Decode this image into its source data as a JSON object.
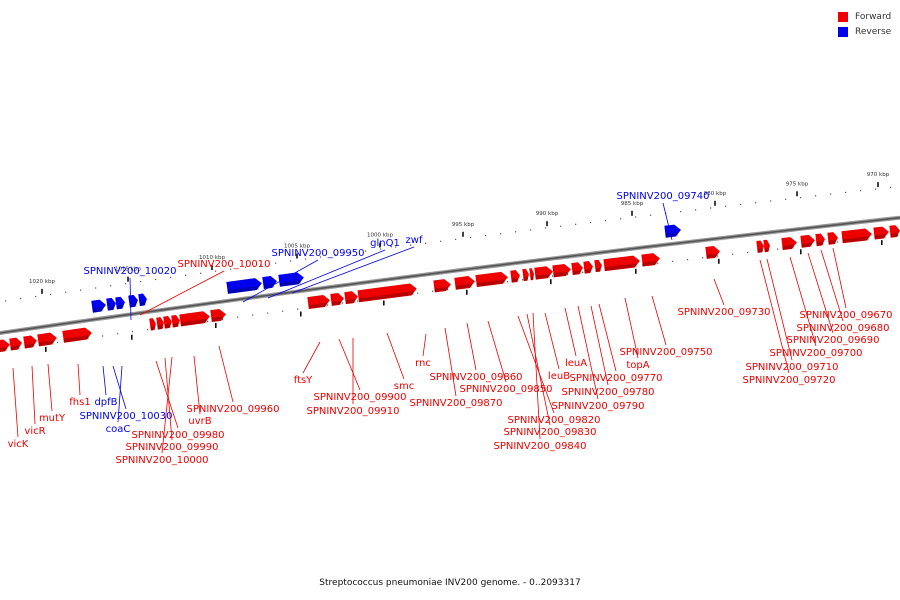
{
  "colors": {
    "forward": "#ee0000",
    "reverse": "#0000ee",
    "backbone": "#777777"
  },
  "legend": {
    "forward_label": "Forward",
    "reverse_label": "Reverse"
  },
  "caption": "Streptococcus pneumoniae INV200 genome. - 0..2093317",
  "ticks": [
    "1020 kbp",
    "1015 kbp",
    "1010 kbp",
    "1005 kbp",
    "1000 kbp",
    "995 kbp",
    "990 kbp",
    "985 kbp",
    "980 kbp",
    "975 kbp",
    "970 kbp"
  ],
  "genes": [
    {
      "label": "vicK",
      "strand": "forward"
    },
    {
      "label": "vicR",
      "strand": "forward"
    },
    {
      "label": "mutY",
      "strand": "forward"
    },
    {
      "label": "fhs1",
      "strand": "forward"
    },
    {
      "label": "dpfB",
      "strand": "reverse"
    },
    {
      "label": "SPNINV200_10030",
      "strand": "reverse"
    },
    {
      "label": "coaC",
      "strand": "reverse"
    },
    {
      "label": "SPNINV200_10020",
      "strand": "reverse"
    },
    {
      "label": "SPNINV200_10010",
      "strand": "forward"
    },
    {
      "label": "SPNINV200_09980",
      "strand": "forward"
    },
    {
      "label": "SPNINV200_09990",
      "strand": "forward"
    },
    {
      "label": "SPNINV200_10000",
      "strand": "forward"
    },
    {
      "label": "uvrB",
      "strand": "forward"
    },
    {
      "label": "SPNINV200_09960",
      "strand": "forward"
    },
    {
      "label": "SPNINV200_09950",
      "strand": "reverse"
    },
    {
      "label": "glnQ1",
      "strand": "reverse"
    },
    {
      "label": "zwf",
      "strand": "reverse"
    },
    {
      "label": "ftsY",
      "strand": "forward"
    },
    {
      "label": "SPNINV200_09900",
      "strand": "forward"
    },
    {
      "label": "SPNINV200_09910",
      "strand": "forward"
    },
    {
      "label": "smc",
      "strand": "forward"
    },
    {
      "label": "rnc",
      "strand": "forward"
    },
    {
      "label": "SPNINV200_09870",
      "strand": "forward"
    },
    {
      "label": "SPNINV200_09860",
      "strand": "forward"
    },
    {
      "label": "SPNINV200_09850",
      "strand": "forward"
    },
    {
      "label": "SPNINV200_09820",
      "strand": "forward"
    },
    {
      "label": "SPNINV200_09830",
      "strand": "forward"
    },
    {
      "label": "SPNINV200_09840",
      "strand": "forward"
    },
    {
      "label": "leuB",
      "strand": "forward"
    },
    {
      "label": "leuA",
      "strand": "forward"
    },
    {
      "label": "SPNINV200_09790",
      "strand": "forward"
    },
    {
      "label": "SPNINV200_09780",
      "strand": "forward"
    },
    {
      "label": "SPNINV200_09770",
      "strand": "forward"
    },
    {
      "label": "topA",
      "strand": "forward"
    },
    {
      "label": "SPNINV200_09750",
      "strand": "forward"
    },
    {
      "label": "SPNINV200_09740",
      "strand": "reverse"
    },
    {
      "label": "SPNINV200_09730",
      "strand": "forward"
    },
    {
      "label": "SPNINV200_09720",
      "strand": "forward"
    },
    {
      "label": "SPNINV200_09710",
      "strand": "forward"
    },
    {
      "label": "SPNINV200_09700",
      "strand": "forward"
    },
    {
      "label": "SPNINV200_09690",
      "strand": "forward"
    },
    {
      "label": "SPNINV200_09680",
      "strand": "forward"
    },
    {
      "label": "SPNINV200_09670",
      "strand": "forward"
    }
  ]
}
